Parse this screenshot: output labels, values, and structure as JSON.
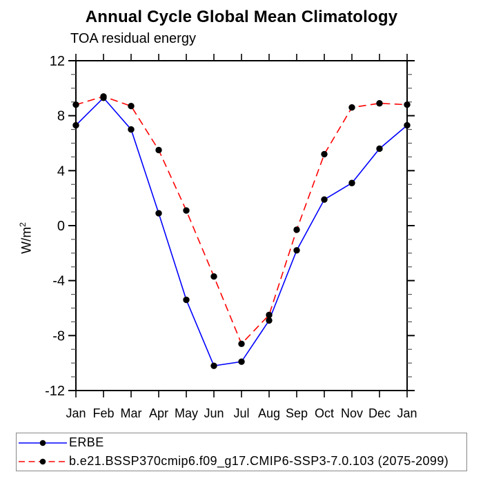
{
  "title": "Annual Cycle Global Mean Climatology",
  "subtitle": "TOA residual energy",
  "y_axis": {
    "title": "W/m",
    "title_sup": "2",
    "tick_labels": [
      "12",
      "8",
      "4",
      "0",
      "-4",
      "-8",
      "-12"
    ]
  },
  "chart_data": {
    "type": "line",
    "title": "Annual Cycle Global Mean Climatology",
    "subtitle": "TOA residual energy",
    "ylabel": "W/m^2",
    "categories": [
      "Jan",
      "Feb",
      "Mar",
      "Apr",
      "May",
      "Jun",
      "Jul",
      "Aug",
      "Sep",
      "Oct",
      "Nov",
      "Dec",
      "Jan"
    ],
    "series": [
      {
        "name": "ERBE",
        "color": "#0000ff",
        "line_style": "solid",
        "marker": "circle",
        "marker_color": "#000000",
        "values": [
          7.3,
          9.3,
          7.0,
          0.9,
          -5.4,
          -10.2,
          -9.9,
          -6.9,
          -1.8,
          1.9,
          3.1,
          5.6,
          7.3
        ]
      },
      {
        "name": "b.e21.BSSP370cmip6.f09_g17.CMIP6-SSP3-7.0.103 (2075-2099)",
        "color": "#ff0000",
        "line_style": "dashed",
        "marker": "circle",
        "marker_color": "#000000",
        "values": [
          8.8,
          9.4,
          8.7,
          5.5,
          1.1,
          -3.7,
          -8.6,
          -6.5,
          -0.3,
          5.2,
          8.6,
          8.9,
          8.8
        ]
      }
    ],
    "ylim": [
      -12,
      12
    ],
    "y_major_step": 4,
    "y_minor_step": 1,
    "grid": false,
    "legend_position": "bottom-left",
    "axis_color": "#000000",
    "minor_tick_color": "#555555"
  }
}
